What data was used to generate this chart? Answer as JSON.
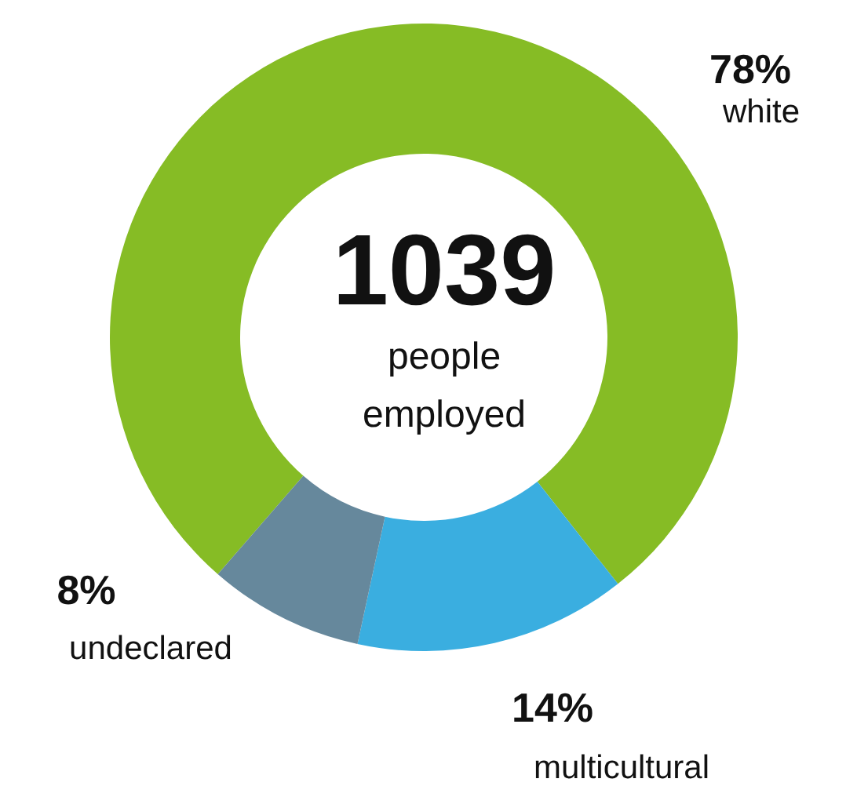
{
  "chart_data": {
    "type": "donut",
    "categories": [
      "white",
      "multicultural",
      "undeclared"
    ],
    "values": [
      78,
      14,
      8
    ],
    "colors": [
      "#86bc25",
      "#3aaee0",
      "#66889c"
    ],
    "value_labels": [
      "78%",
      "14%",
      "8%"
    ],
    "annotations": [
      "1039",
      "people employed"
    ]
  }
}
